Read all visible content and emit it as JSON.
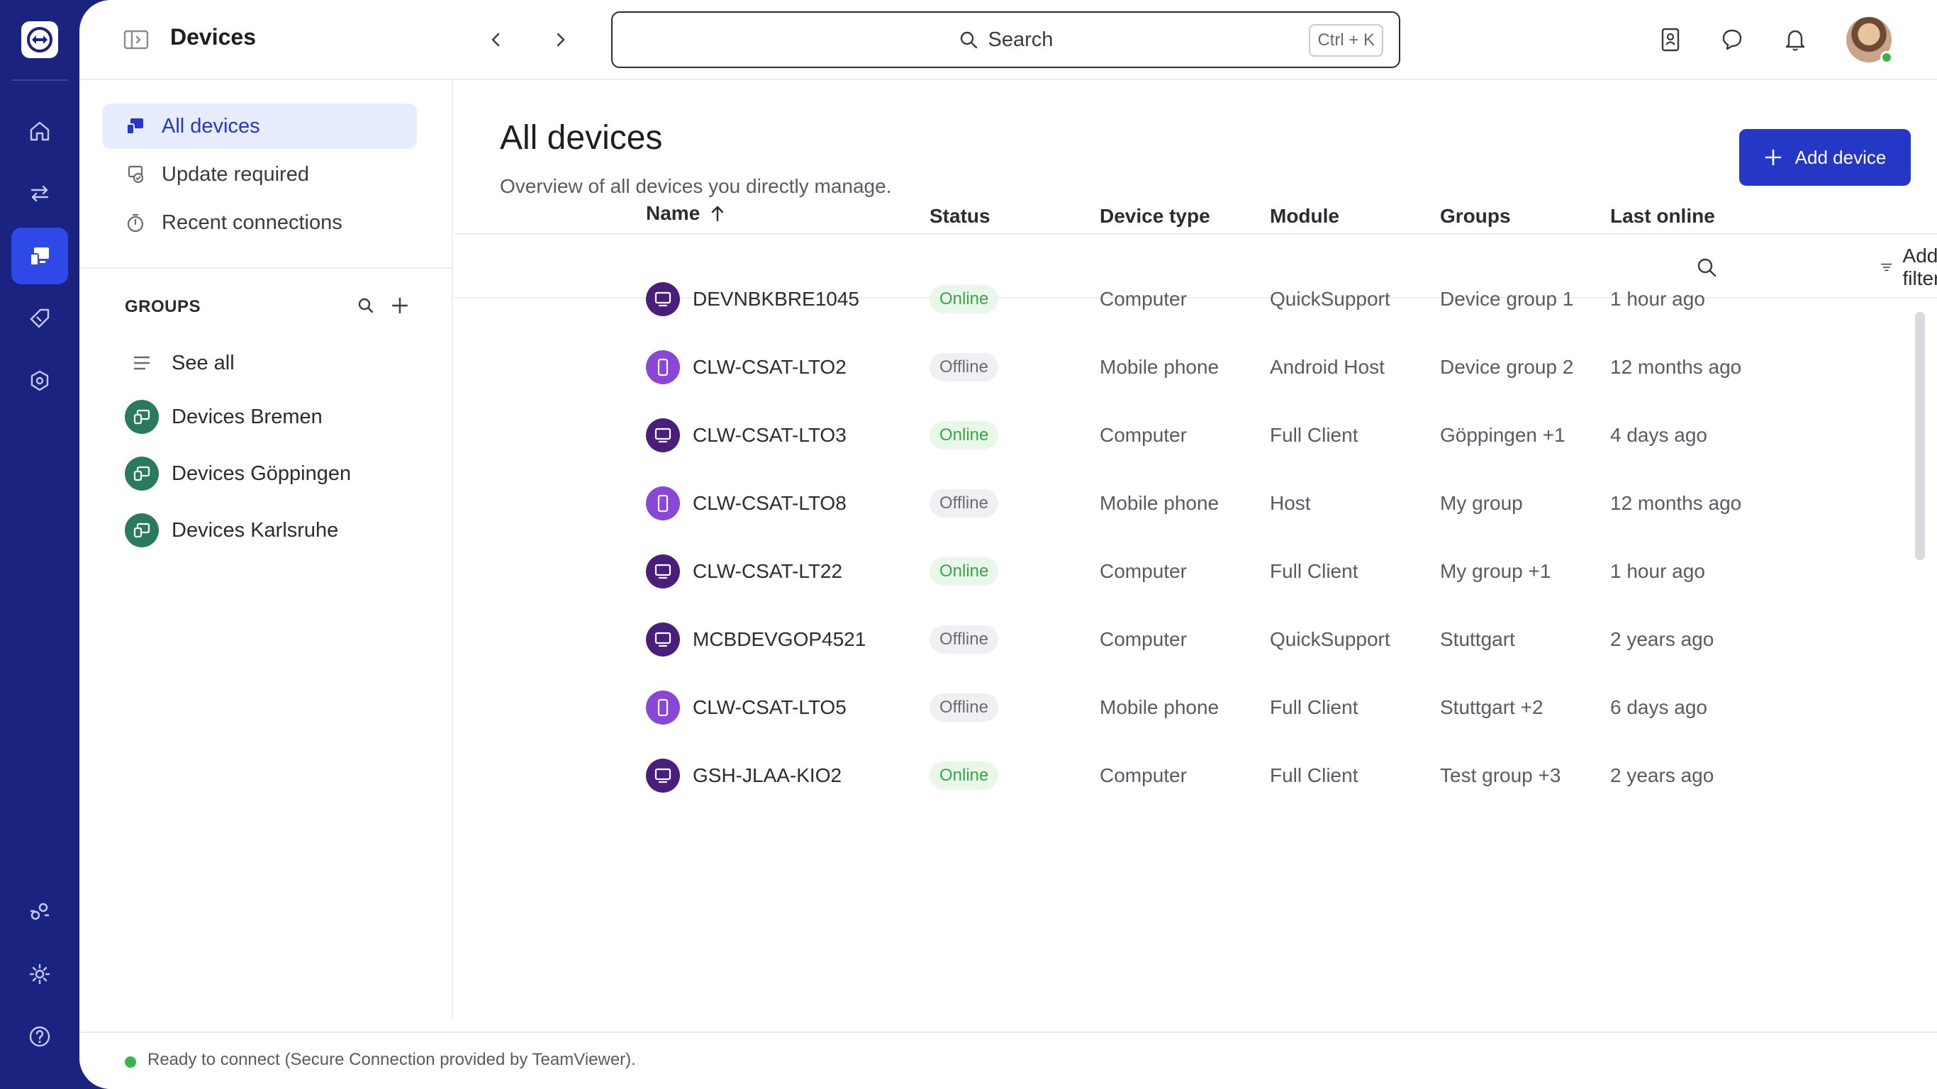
{
  "app": {
    "brand_icon": "teamviewer-logo-icon"
  },
  "rail": {
    "items": [
      {
        "name": "home",
        "icon": "home-icon"
      },
      {
        "name": "connections",
        "icon": "swap-arrows-icon"
      },
      {
        "name": "devices",
        "icon": "devices-icon",
        "active": true
      },
      {
        "name": "tags",
        "icon": "tag-icon"
      },
      {
        "name": "security",
        "icon": "shield-gear-icon"
      },
      {
        "name": "integrations",
        "icon": "integrations-icon"
      },
      {
        "name": "settings",
        "icon": "gear-icon"
      },
      {
        "name": "help",
        "icon": "help-icon"
      }
    ]
  },
  "header": {
    "title": "Devices",
    "search_placeholder": "Search",
    "search_shortcut": "Ctrl + K"
  },
  "subnav": {
    "items": [
      {
        "label": "All devices",
        "icon": "devices-icon",
        "active": true
      },
      {
        "label": "Update required",
        "icon": "update-icon"
      },
      {
        "label": "Recent connections",
        "icon": "timer-icon"
      }
    ],
    "groups_title": "GROUPS",
    "see_all": "See all",
    "groups": [
      {
        "label": "Devices Bremen"
      },
      {
        "label": "Devices Göppingen"
      },
      {
        "label": "Devices Karlsruhe"
      }
    ]
  },
  "content": {
    "title": "All devices",
    "subtitle": "Overview of all devices you directly manage.",
    "add_button": "Add device",
    "add_filters": "Add filters"
  },
  "table": {
    "columns": [
      "Name",
      "Status",
      "Device type",
      "Module",
      "Groups",
      "Last online"
    ],
    "rows": [
      {
        "name": "DEVNBKBRE1045",
        "status": "Online",
        "type": "Computer",
        "module": "QuickSupport",
        "groups": "Device group 1",
        "last_online": "1 hour ago"
      },
      {
        "name": "CLW-CSAT-LTO2",
        "status": "Offline",
        "type": "Mobile phone",
        "module": "Android Host",
        "groups": "Device group 2",
        "last_online": "12 months ago"
      },
      {
        "name": "CLW-CSAT-LTO3",
        "status": "Online",
        "type": "Computer",
        "module": "Full Client",
        "groups": "Göppingen +1",
        "last_online": "4 days ago"
      },
      {
        "name": "CLW-CSAT-LTO8",
        "status": "Offline",
        "type": "Mobile phone",
        "module": "Host",
        "groups": "My group",
        "last_online": "12 months ago"
      },
      {
        "name": "CLW-CSAT-LT22",
        "status": "Online",
        "type": "Computer",
        "module": "Full Client",
        "groups": "My group +1",
        "last_online": "1 hour ago"
      },
      {
        "name": "MCBDEVGOP4521",
        "status": "Offline",
        "type": "Computer",
        "module": "QuickSupport",
        "groups": "Stuttgart",
        "last_online": "2 years ago"
      },
      {
        "name": "CLW-CSAT-LTO5",
        "status": "Offline",
        "type": "Mobile phone",
        "module": "Full Client",
        "groups": "Stuttgart +2",
        "last_online": "6 days ago"
      },
      {
        "name": "GSH-JLAA-KIO2",
        "status": "Online",
        "type": "Computer",
        "module": "Full Client",
        "groups": "Test group +3",
        "last_online": "2 years ago"
      }
    ]
  },
  "footer": {
    "status_text": "Ready to connect (Secure Connection provided by TeamViewer)."
  },
  "colors": {
    "rail": "#1b2380",
    "accent": "#2537c7",
    "online": "#3aa447",
    "group_badge": "#2a7a5f"
  }
}
